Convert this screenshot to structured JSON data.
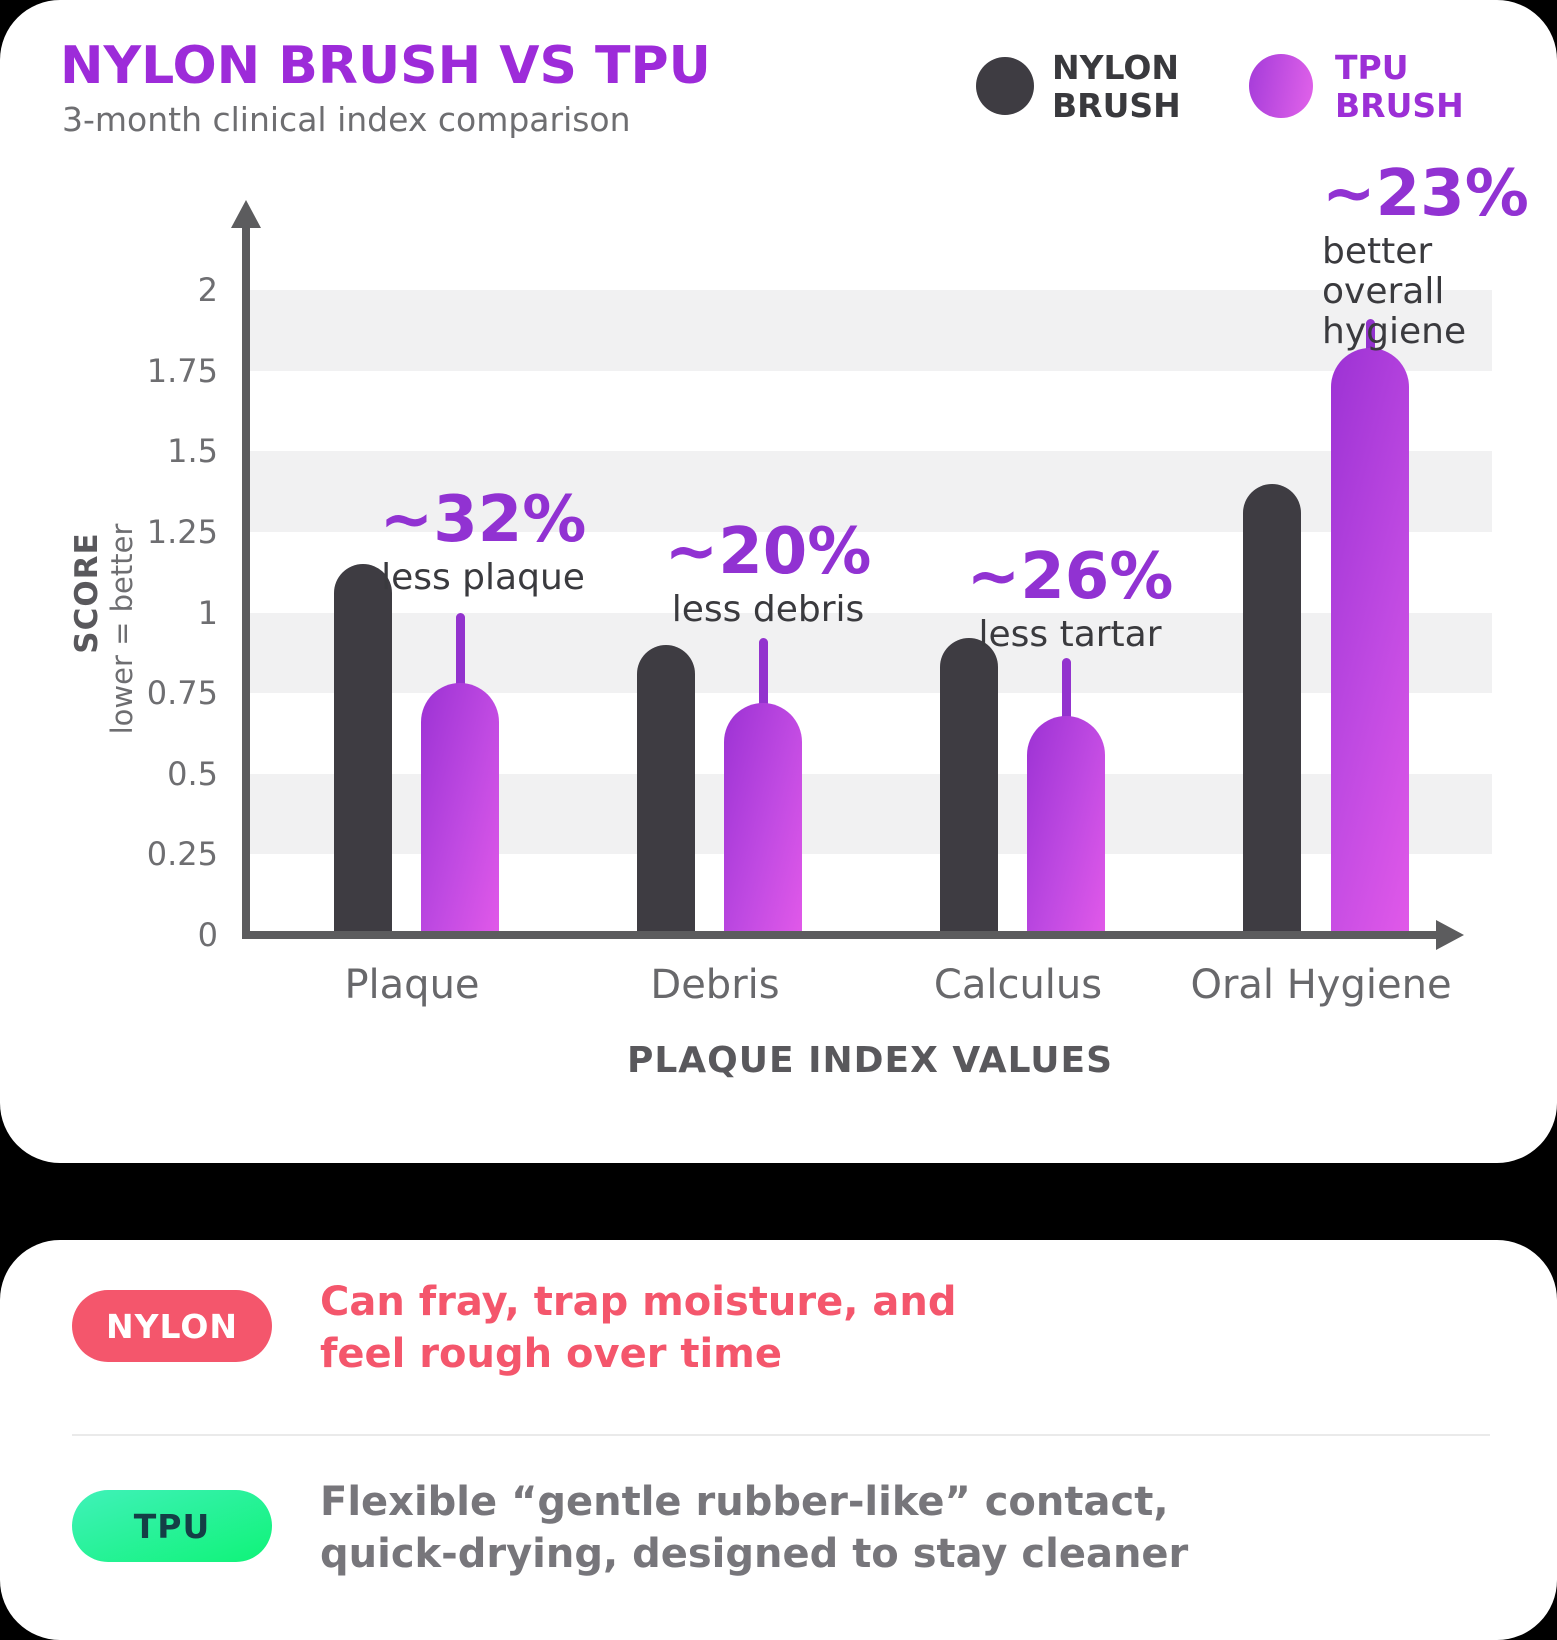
{
  "header": {
    "title": "NYLON BRUSH VS TPU",
    "subtitle": "3-month clinical index comparison"
  },
  "legend": [
    {
      "label": "NYLON\nBRUSH",
      "color": "#3E3C42"
    },
    {
      "label": "TPU\nBRUSH",
      "color_start": "#A43BD9",
      "color_end": "#E263EA"
    }
  ],
  "chart_data": {
    "type": "bar",
    "title": "NYLON BRUSH VS TPU",
    "subtitle": "3-month clinical index comparison",
    "categories": [
      "Plaque",
      "Debris",
      "Calculus",
      "Oral Hygiene"
    ],
    "series": [
      {
        "name": "Nylon Brush",
        "values": [
          1.15,
          0.9,
          0.92,
          1.4
        ]
      },
      {
        "name": "TPU Brush",
        "values": [
          0.78,
          0.72,
          0.68,
          1.82
        ],
        "whisker_tops": [
          1.0,
          0.92,
          0.86,
          1.91
        ]
      }
    ],
    "annotations": [
      {
        "percent": "~32%",
        "label": "less plaque"
      },
      {
        "percent": "~20%",
        "label": "less debris"
      },
      {
        "percent": "~26%",
        "label": "less tartar"
      },
      {
        "percent": "~23%",
        "label": "better overall\nhygiene"
      }
    ],
    "yticks": [
      "0",
      "0.25",
      "0.5",
      "0.75",
      "1",
      "1.25",
      "1.5",
      "1.75",
      "2"
    ],
    "ylim": [
      0,
      2.2
    ],
    "ylabel": "SCORE",
    "ylabel_sub": "lower = better",
    "xlabel": "PLAQUE INDEX VALUES",
    "grid": "striped-bands",
    "legend_position": "top-right"
  },
  "callouts": [
    {
      "badge": "NYLON",
      "text": "Can fray, trap moisture, and\nfeel rough over time"
    },
    {
      "badge": "TPU",
      "text": "Flexible “gentle rubber-like” contact,\nquick-drying, designed to stay cleaner"
    }
  ],
  "colors": {
    "heading_purple": "#9D2BD9",
    "annotation_purple": "#9132D2",
    "tpu_bar_start": "#9C32D4",
    "tpu_bar_end": "#E159E9",
    "nylon_bar": "#3E3C42",
    "axis_gray": "#5C5C5E",
    "stripe_gray": "#F1F1F2",
    "nylon_red": "#F4566C",
    "tpu_green_start": "#40F2B9",
    "tpu_green_end": "#0FF378",
    "background": "#000000"
  }
}
